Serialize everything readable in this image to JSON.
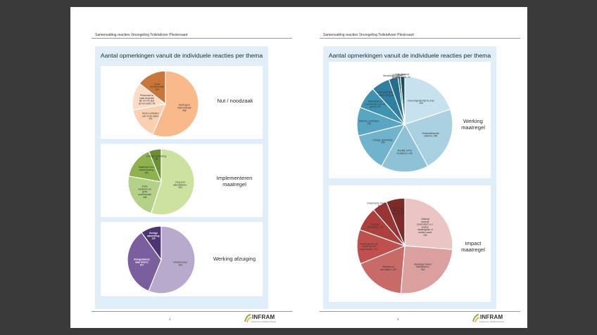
{
  "left_page": {
    "header": "Samenvatting reacties Verzegeling Toiletafvoer Pleziervaart",
    "panel_title": "Aantal opmerkingen vanuit de individuele reacties per thema",
    "page_number": "2",
    "charts": [
      {
        "theme_lines": [
          "Nut / noodzaak"
        ],
        "slices": [
          {
            "label_lines": [
              "Heeft geen",
              "nut/noodzaak",
              "408"
            ],
            "value": 408,
            "color": "#f9b98b",
            "label_color": "dark"
          },
          {
            "label_lines": [
              "Dieren ontlasten",
              "ook in het water;",
              "114"
            ],
            "value": 114,
            "color": "#fbd0b0",
            "label_color": "dark"
          },
          {
            "label_lines": [
              "Plezirvaart is",
              "maar beperkte",
              "tijd om het jaar",
              "op het water; 99"
            ],
            "value": 99,
            "color": "#fcdcc4",
            "label_color": "dark"
          },
          {
            "label_lines": [
              "Groot",
              "nut/noodzaak",
              "104"
            ],
            "value": 104,
            "color": "#c8763a",
            "label_color": "dark"
          }
        ]
      },
      {
        "theme_lines": [
          "Implementeren",
          "maatregel"
        ],
        "slices": [
          {
            "label_lines": [
              "Zorg voor",
              "alternatieven;",
              "404"
            ],
            "value": 404,
            "color": "#cde2a0",
            "label_color": "dark"
          },
          {
            "label_lines": [
              "Extra",
              "nadenken en",
              "goed",
              "voorbereiden",
              "168"
            ],
            "value": 168,
            "color": "#b4d188",
            "label_color": "dark"
          },
          {
            "label_lines": [
              "Maatregel voor",
              "onderhouwing;",
              "118"
            ],
            "value": 118,
            "color": "#8fb24f",
            "label_color": "dark"
          },
          {
            "label_lines": [
              "Overige opmerking;",
              "45"
            ],
            "value": 45,
            "color": "#6d8f34",
            "label_color": "dark"
          }
        ]
      },
      {
        "theme_lines": [
          "Werking afzuiging"
        ],
        "slices": [
          {
            "label_lines": [
              "Infrastructuur;",
              "623"
            ],
            "value": 623,
            "color": "#b8aacd",
            "label_color": "dark"
          },
          {
            "label_lines": [
              "Afzuigstations",
              "vaak defect;",
              "377"
            ],
            "value": 377,
            "color": "#7a5e9e",
            "label_color": "light"
          },
          {
            "label_lines": [
              "Overige",
              "opmerking;",
              "110"
            ],
            "value": 110,
            "color": "#4d3572",
            "label_color": "light"
          }
        ]
      }
    ]
  },
  "right_page": {
    "header": "Samenvatting reacties Verzegeling Toiletafvoer Plezirvaart",
    "panel_title": "Aantal opmerkingen vanuit de individuele reacties per thema",
    "page_number": "3",
    "charts": [
      {
        "theme_lines": [
          "Werking",
          "maatregel"
        ],
        "slices": [
          {
            "label_lines": [
              "Invoeringsstermijn te snel;",
              "305"
            ],
            "value": 305,
            "color": "#c7e2ee",
            "label_color": "dark"
          },
          {
            "label_lines": [
              "Geclassificeerde",
              "wateren; 338"
            ],
            "value": 338,
            "color": "#a9d1e2",
            "label_color": "dark"
          },
          {
            "label_lines": [
              "Moeilijk zelf te",
              "installeren; 246"
            ],
            "value": 246,
            "color": "#8ec2d7",
            "label_color": "dark"
          },
          {
            "label_lines": [
              "Overige opmerking;",
              "199"
            ],
            "value": 199,
            "color": "#6fb3cc",
            "label_color": "dark"
          },
          {
            "label_lines": [
              "Wie/hoe controleert",
              "148"
            ],
            "value": 148,
            "color": "#58a6c3",
            "label_color": "dark"
          },
          {
            "label_lines": [
              "Buitenland en",
              "overvloeden van de",
              "grens; 115"
            ],
            "value": 115,
            "color": "#3e93b3",
            "label_color": "dark"
          },
          {
            "label_lines": [
              "Hoe wordt alleen",
              "urine lozing; 96"
            ],
            "value": 96,
            "color": "#2f7fa0",
            "label_color": "dark"
          },
          {
            "label_lines": [
              "Winterklaar maken;",
              "48"
            ],
            "value": 48,
            "color": "#236e8e",
            "label_color": "dark"
          },
          {
            "label_lines": [
              "Hoe wordt er",
              "verzegeld; 12"
            ],
            "value": 12,
            "color": "#1b5d7a",
            "label_color": "dark"
          },
          {
            "label_lines": [
              "Wie gaat het",
              "verzegelen; 23"
            ],
            "value": 23,
            "color": "#174f67",
            "label_color": "dark"
          }
        ]
      },
      {
        "theme_lines": [
          "Impact",
          "maatregel"
        ],
        "slices": [
          {
            "label_lines": [
              "Onterrijt",
              "beperkt",
              "plezirvaart t.o.v.",
              "andere",
              "maatregelen of",
              "andere vaart;",
              "332"
            ],
            "value": 332,
            "color": "#eac5c3",
            "label_color": "dark"
          },
          {
            "label_lines": [
              "Maatregel beleid",
              "bestrijmeren;",
              "318"
            ],
            "value": 318,
            "color": "#dba09e",
            "label_color": "dark"
          },
          {
            "label_lines": [
              "Weekeld vs",
              "schoolkten; 222"
            ],
            "value": 222,
            "color": "#c86b68",
            "label_color": "dark"
          },
          {
            "label_lines": [
              "Maatregel brengt",
              "ander veel te",
              "hoge kosten; 147"
            ],
            "value": 147,
            "color": "#c0504d",
            "label_color": "dark"
          },
          {
            "label_lines": [
              "Overige",
              "opmerking; 103"
            ],
            "value": 103,
            "color": "#ad3f3c",
            "label_color": "dark"
          },
          {
            "label_lines": [
              "Drasmische maatregel;",
              "64"
            ],
            "value": 64,
            "color": "#983533",
            "label_color": "dark"
          },
          {
            "label_lines": [
              "Zorgen over",
              "privacy bij",
              "controle; 80"
            ],
            "value": 80,
            "color": "#7e2a28",
            "label_color": "dark"
          }
        ]
      }
    ]
  },
  "logo": {
    "name": "INFRAM",
    "tagline": "Infrastructuur, Mobiliteit & Ruimte"
  }
}
